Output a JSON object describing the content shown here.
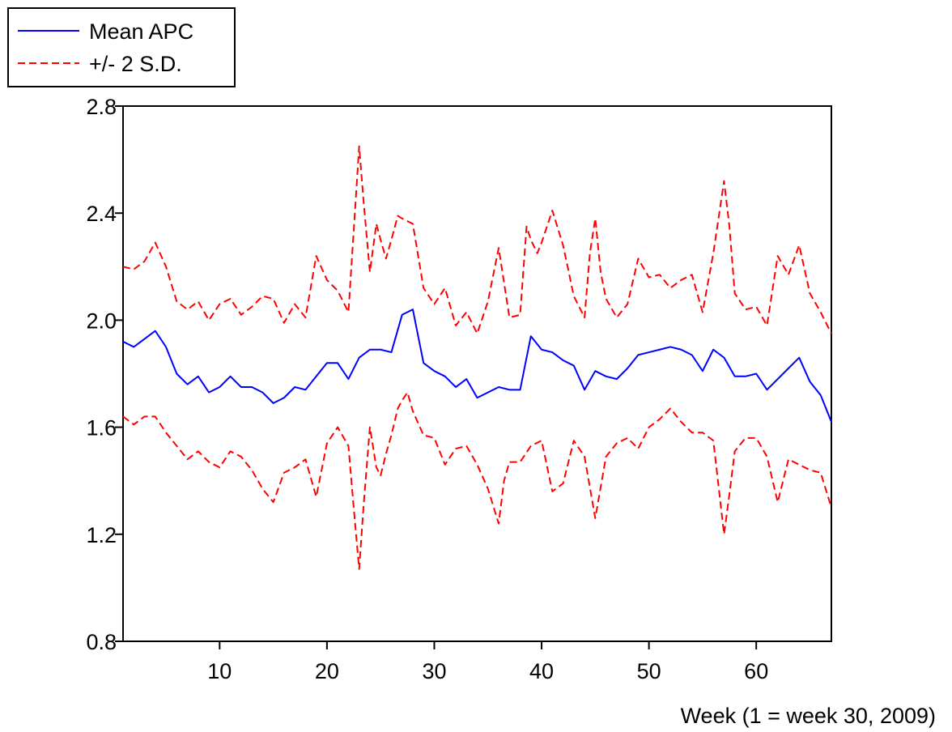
{
  "chart_data": {
    "type": "line",
    "xlabel": "Week (1 = week 30, 2009)",
    "ylabel": "",
    "xlim": [
      1,
      67
    ],
    "ylim": [
      0.8,
      2.8
    ],
    "xticks": [
      10,
      20,
      30,
      40,
      50,
      60
    ],
    "xtick_labels": [
      "10",
      "20",
      "30",
      "40",
      "50",
      "60"
    ],
    "yticks": [
      0.8,
      1.2,
      1.6,
      2.0,
      2.4,
      2.8
    ],
    "ytick_labels": [
      "0.8",
      "1.2",
      "1.6",
      "2.0",
      "2.4",
      "2.8"
    ],
    "grid": false,
    "legend": {
      "position": "top-left-outside"
    },
    "series": [
      {
        "name": "Mean APC",
        "color": "#0000ff",
        "style": "solid",
        "points": [
          [
            1,
            1.92
          ],
          [
            2,
            1.9
          ],
          [
            3,
            1.93
          ],
          [
            4,
            1.96
          ],
          [
            5,
            1.9
          ],
          [
            6,
            1.8
          ],
          [
            7,
            1.76
          ],
          [
            8,
            1.79
          ],
          [
            9,
            1.73
          ],
          [
            10,
            1.75
          ],
          [
            11,
            1.79
          ],
          [
            12,
            1.75
          ],
          [
            13,
            1.75
          ],
          [
            14,
            1.73
          ],
          [
            15,
            1.69
          ],
          [
            16,
            1.71
          ],
          [
            17,
            1.75
          ],
          [
            18,
            1.74
          ],
          [
            19,
            1.79
          ],
          [
            20,
            1.84
          ],
          [
            21,
            1.84
          ],
          [
            22,
            1.78
          ],
          [
            23,
            1.86
          ],
          [
            24,
            1.89
          ],
          [
            25,
            1.89
          ],
          [
            26,
            1.88
          ],
          [
            27,
            2.02
          ],
          [
            28,
            2.04
          ],
          [
            29,
            1.84
          ],
          [
            30,
            1.81
          ],
          [
            31,
            1.79
          ],
          [
            32,
            1.75
          ],
          [
            33,
            1.78
          ],
          [
            34,
            1.71
          ],
          [
            35,
            1.73
          ],
          [
            36,
            1.75
          ],
          [
            37,
            1.74
          ],
          [
            38,
            1.74
          ],
          [
            39,
            1.94
          ],
          [
            40,
            1.89
          ],
          [
            41,
            1.88
          ],
          [
            42,
            1.85
          ],
          [
            43,
            1.83
          ],
          [
            44,
            1.74
          ],
          [
            45,
            1.81
          ],
          [
            46,
            1.79
          ],
          [
            47,
            1.78
          ],
          [
            48,
            1.82
          ],
          [
            49,
            1.87
          ],
          [
            50,
            1.88
          ],
          [
            51,
            1.89
          ],
          [
            52,
            1.9
          ],
          [
            53,
            1.89
          ],
          [
            54,
            1.87
          ],
          [
            55,
            1.81
          ],
          [
            56,
            1.89
          ],
          [
            57,
            1.86
          ],
          [
            58,
            1.79
          ],
          [
            59,
            1.79
          ],
          [
            60,
            1.8
          ],
          [
            61,
            1.74
          ],
          [
            62,
            1.78
          ],
          [
            63,
            1.82
          ],
          [
            64,
            1.86
          ],
          [
            65,
            1.77
          ],
          [
            66,
            1.72
          ],
          [
            67,
            1.62
          ]
        ]
      },
      {
        "name": "+/- 2 S.D.",
        "color": "#ff0000",
        "style": "dashed",
        "points": [
          [
            1,
            2.2
          ],
          [
            2,
            2.19
          ],
          [
            3,
            2.22
          ],
          [
            4,
            2.29
          ],
          [
            5,
            2.2
          ],
          [
            6,
            2.07
          ],
          [
            7,
            2.04
          ],
          [
            8,
            2.07
          ],
          [
            9,
            2.0
          ],
          [
            10,
            2.06
          ],
          [
            11,
            2.08
          ],
          [
            12,
            2.02
          ],
          [
            13,
            2.05
          ],
          [
            14,
            2.09
          ],
          [
            15,
            2.08
          ],
          [
            16,
            1.99
          ],
          [
            17,
            2.06
          ],
          [
            18,
            2.01
          ],
          [
            19,
            2.24
          ],
          [
            20,
            2.15
          ],
          [
            21,
            2.11
          ],
          [
            22,
            2.03
          ],
          [
            22.6,
            2.4
          ],
          [
            23,
            2.65
          ],
          [
            23.4,
            2.45
          ],
          [
            24,
            2.18
          ],
          [
            24.6,
            2.36
          ],
          [
            25,
            2.3
          ],
          [
            25.5,
            2.23
          ],
          [
            26,
            2.3
          ],
          [
            26.6,
            2.39
          ],
          [
            27,
            2.38
          ],
          [
            28,
            2.36
          ],
          [
            29,
            2.12
          ],
          [
            30,
            2.06
          ],
          [
            31,
            2.12
          ],
          [
            32,
            1.98
          ],
          [
            33,
            2.03
          ],
          [
            34,
            1.95
          ],
          [
            35,
            2.07
          ],
          [
            36,
            2.27
          ],
          [
            37,
            2.01
          ],
          [
            38,
            2.02
          ],
          [
            38.6,
            2.35
          ],
          [
            39,
            2.3
          ],
          [
            39.6,
            2.25
          ],
          [
            40,
            2.29
          ],
          [
            41,
            2.41
          ],
          [
            42,
            2.28
          ],
          [
            43,
            2.09
          ],
          [
            44,
            2.01
          ],
          [
            44.5,
            2.25
          ],
          [
            45,
            2.38
          ],
          [
            45.5,
            2.18
          ],
          [
            46,
            2.08
          ],
          [
            47,
            2.01
          ],
          [
            48,
            2.06
          ],
          [
            49,
            2.23
          ],
          [
            50,
            2.16
          ],
          [
            51,
            2.17
          ],
          [
            52,
            2.12
          ],
          [
            53,
            2.15
          ],
          [
            54,
            2.17
          ],
          [
            55,
            2.03
          ],
          [
            56,
            2.25
          ],
          [
            57,
            2.52
          ],
          [
            57.5,
            2.35
          ],
          [
            58,
            2.1
          ],
          [
            59,
            2.04
          ],
          [
            60,
            2.05
          ],
          [
            61,
            1.98
          ],
          [
            62,
            2.24
          ],
          [
            63,
            2.17
          ],
          [
            64,
            2.28
          ],
          [
            65,
            2.1
          ],
          [
            66,
            2.03
          ],
          [
            67,
            1.95
          ]
        ]
      },
      {
        "name": "+/- 2 S.D.",
        "color": "#ff0000",
        "style": "dashed",
        "points": [
          [
            1,
            1.64
          ],
          [
            2,
            1.61
          ],
          [
            3,
            1.64
          ],
          [
            4,
            1.64
          ],
          [
            5,
            1.58
          ],
          [
            6,
            1.53
          ],
          [
            7,
            1.48
          ],
          [
            8,
            1.51
          ],
          [
            9,
            1.47
          ],
          [
            10,
            1.45
          ],
          [
            11,
            1.51
          ],
          [
            12,
            1.49
          ],
          [
            13,
            1.44
          ],
          [
            14,
            1.37
          ],
          [
            15,
            1.32
          ],
          [
            16,
            1.43
          ],
          [
            17,
            1.45
          ],
          [
            18,
            1.48
          ],
          [
            19,
            1.34
          ],
          [
            20,
            1.54
          ],
          [
            21,
            1.6
          ],
          [
            22,
            1.53
          ],
          [
            22.6,
            1.25
          ],
          [
            23,
            1.07
          ],
          [
            23.4,
            1.3
          ],
          [
            24,
            1.6
          ],
          [
            24.6,
            1.45
          ],
          [
            25,
            1.42
          ],
          [
            25.5,
            1.5
          ],
          [
            26,
            1.57
          ],
          [
            26.6,
            1.67
          ],
          [
            27,
            1.7
          ],
          [
            27.5,
            1.73
          ],
          [
            28,
            1.66
          ],
          [
            29,
            1.57
          ],
          [
            30,
            1.56
          ],
          [
            31,
            1.46
          ],
          [
            32,
            1.52
          ],
          [
            33,
            1.53
          ],
          [
            34,
            1.46
          ],
          [
            35,
            1.37
          ],
          [
            36,
            1.24
          ],
          [
            36.5,
            1.4
          ],
          [
            37,
            1.47
          ],
          [
            38,
            1.47
          ],
          [
            39,
            1.53
          ],
          [
            40,
            1.55
          ],
          [
            41,
            1.36
          ],
          [
            42,
            1.39
          ],
          [
            43,
            1.55
          ],
          [
            44,
            1.49
          ],
          [
            45,
            1.26
          ],
          [
            46,
            1.49
          ],
          [
            47,
            1.54
          ],
          [
            48,
            1.56
          ],
          [
            49,
            1.52
          ],
          [
            50,
            1.6
          ],
          [
            51,
            1.63
          ],
          [
            52,
            1.67
          ],
          [
            53,
            1.62
          ],
          [
            54,
            1.58
          ],
          [
            55,
            1.58
          ],
          [
            56,
            1.55
          ],
          [
            57,
            1.2
          ],
          [
            57.5,
            1.35
          ],
          [
            58,
            1.51
          ],
          [
            59,
            1.56
          ],
          [
            60,
            1.56
          ],
          [
            61,
            1.49
          ],
          [
            62,
            1.32
          ],
          [
            63,
            1.48
          ],
          [
            64,
            1.46
          ],
          [
            65,
            1.44
          ],
          [
            66,
            1.43
          ],
          [
            67,
            1.3
          ]
        ]
      }
    ]
  }
}
